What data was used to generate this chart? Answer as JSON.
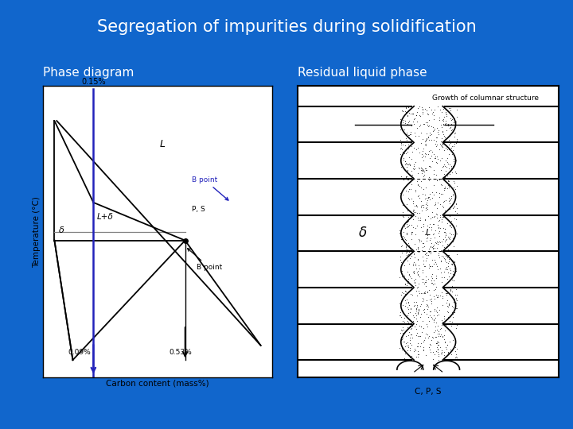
{
  "title": "Segregation of impurities during solidification",
  "title_color": "#FFFFFF",
  "title_fontsize": 15,
  "bg_color": "#1166CC",
  "left_label": "Phase diagram",
  "right_label": "Residual liquid phase",
  "label_color": "#FFFFFF",
  "label_fontsize": 11,
  "growth_text": "Growth of columnar structure",
  "delta_label": "δ",
  "L_label": "L",
  "liquid_label": "L",
  "CPS_label": "C, P, S",
  "B_point_top": "B point",
  "B_point_bot": "B point",
  "PS_label": "P, S",
  "carbon_label": "Carbon content (mass%)",
  "temp_label": "Temperature (°C)",
  "pct_015": "0.15%",
  "pct_009": "0.09%",
  "pct_053": "0.53%",
  "Ldelta_label": "L+δ"
}
